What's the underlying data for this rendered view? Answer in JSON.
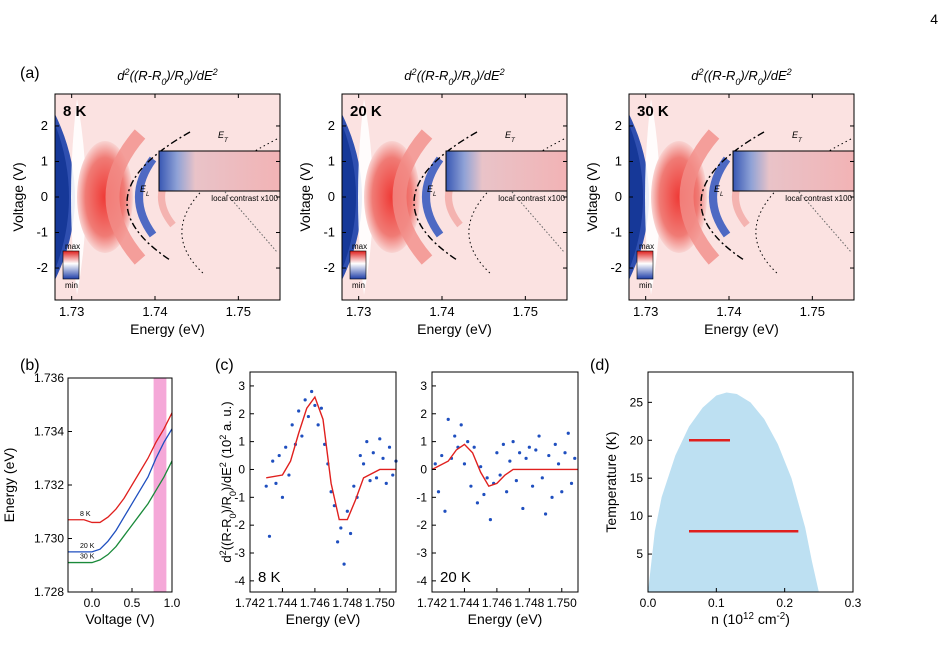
{
  "page_number": "4",
  "panel_a": {
    "panel_label": "(a)",
    "plot_title": "d2((R-R0)/R0)/dE2",
    "xlabel": "Energy (eV)",
    "ylabel": "Voltage (V)",
    "xticks": [
      "1.73",
      "1.74",
      "1.75"
    ],
    "yticks": [
      "2",
      "1",
      "0",
      "-1",
      "-2"
    ],
    "xlim": [
      1.728,
      1.755
    ],
    "ylim": [
      -2.9,
      2.9
    ],
    "colorbar": {
      "max": "max",
      "min": "min"
    },
    "inset_label": "local contrast x100",
    "line_labels": [
      "ET",
      "EL"
    ],
    "maps": [
      {
        "temperature": "8 K"
      },
      {
        "temperature": "20 K"
      },
      {
        "temperature": "30 K"
      }
    ]
  },
  "panel_b": {
    "panel_label": "(b)",
    "xlabel": "Voltage (V)",
    "ylabel": "Energy (eV)",
    "xticks": [
      "0.0",
      "0.5",
      "1.0"
    ],
    "yticks": [
      "1.736",
      "1.734",
      "1.732",
      "1.730",
      "1.728"
    ],
    "xlim": [
      -0.3,
      1.0
    ],
    "ylim": [
      1.728,
      1.736
    ],
    "highlight_range": [
      0.77,
      0.93
    ],
    "highlight_color": "#f5a8d8",
    "chart_data": {
      "type": "line",
      "series": [
        {
          "name": "8 K",
          "color": "#e0201e",
          "x": [
            -0.3,
            -0.1,
            0.0,
            0.1,
            0.2,
            0.3,
            0.4,
            0.5,
            0.6,
            0.7,
            0.8,
            0.9,
            1.0
          ],
          "y": [
            1.7307,
            1.7307,
            1.7306,
            1.7306,
            1.7308,
            1.7311,
            1.7315,
            1.732,
            1.7325,
            1.733,
            1.7336,
            1.7341,
            1.7347
          ]
        },
        {
          "name": "20 K",
          "color": "#1f4fbf",
          "x": [
            -0.3,
            -0.1,
            0.0,
            0.1,
            0.2,
            0.3,
            0.4,
            0.5,
            0.6,
            0.7,
            0.8,
            0.9,
            1.0
          ],
          "y": [
            1.7295,
            1.7295,
            1.7295,
            1.7296,
            1.7299,
            1.7303,
            1.7308,
            1.7313,
            1.7318,
            1.7323,
            1.733,
            1.7336,
            1.7341
          ]
        },
        {
          "name": "30 K",
          "color": "#1a8a3a",
          "x": [
            -0.3,
            -0.1,
            0.0,
            0.1,
            0.2,
            0.3,
            0.4,
            0.5,
            0.6,
            0.7,
            0.8,
            0.9,
            1.0
          ],
          "y": [
            1.7291,
            1.7291,
            1.7291,
            1.7292,
            1.7294,
            1.7297,
            1.7301,
            1.7305,
            1.7309,
            1.7313,
            1.7318,
            1.7323,
            1.7329
          ]
        }
      ]
    }
  },
  "panel_c": {
    "panel_label": "(c)",
    "ylabel": "d2((R-R0)/R0)/dE2 (102 a. u.)",
    "xlabel": "Energy (eV)",
    "xticks": [
      "1.742",
      "1.744",
      "1.746",
      "1.748",
      "1.750"
    ],
    "yticks": [
      "3",
      "2",
      "1",
      "0",
      "-1",
      "-2",
      "-3",
      "-4"
    ],
    "xlim": [
      1.742,
      1.751
    ],
    "ylim": [
      -4.4,
      3.5
    ],
    "chart_data": [
      {
        "type": "scatter",
        "label": "8 K",
        "fit_color": "#e0201e",
        "point_color": "#1f4fbf",
        "fit_x": [
          1.743,
          1.744,
          1.7445,
          1.745,
          1.7455,
          1.746,
          1.7465,
          1.747,
          1.7475,
          1.748,
          1.7485,
          1.749,
          1.75,
          1.751
        ],
        "fit_y": [
          -0.3,
          -0.2,
          0.3,
          1.3,
          2.2,
          2.6,
          1.8,
          -0.5,
          -1.8,
          -1.8,
          -1.1,
          -0.3,
          0.0,
          0.0
        ],
        "points_x": [
          1.743,
          1.7432,
          1.7434,
          1.7436,
          1.7438,
          1.744,
          1.7442,
          1.7444,
          1.7446,
          1.7448,
          1.745,
          1.7452,
          1.7454,
          1.7456,
          1.7458,
          1.746,
          1.7462,
          1.7464,
          1.7466,
          1.7468,
          1.747,
          1.7472,
          1.7474,
          1.7476,
          1.7478,
          1.748,
          1.7482,
          1.7484,
          1.7486,
          1.7488,
          1.749,
          1.7492,
          1.7494,
          1.7496,
          1.7498,
          1.75,
          1.7502,
          1.7504,
          1.7506,
          1.7508,
          1.751
        ],
        "points_y": [
          -0.6,
          -2.4,
          0.3,
          -0.5,
          0.5,
          -1.0,
          0.8,
          -0.2,
          1.6,
          0.9,
          2.1,
          1.2,
          2.5,
          1.9,
          2.8,
          2.3,
          1.6,
          2.2,
          0.9,
          0.2,
          -0.8,
          -1.3,
          -2.6,
          -2.1,
          -3.4,
          -1.5,
          -2.3,
          -0.6,
          -1.0,
          0.5,
          0.2,
          1.0,
          -0.4,
          0.6,
          -0.3,
          1.1,
          0.4,
          -0.5,
          0.8,
          -0.2,
          0.3
        ]
      },
      {
        "type": "scatter",
        "label": "20 K",
        "fit_color": "#e0201e",
        "point_color": "#1f4fbf",
        "fit_x": [
          1.742,
          1.743,
          1.7435,
          1.744,
          1.7445,
          1.745,
          1.7455,
          1.746,
          1.7465,
          1.747,
          1.748,
          1.749,
          1.75,
          1.751
        ],
        "fit_y": [
          0.0,
          0.3,
          0.7,
          0.9,
          0.6,
          -0.1,
          -0.6,
          -0.5,
          -0.2,
          0.0,
          0.0,
          0.0,
          0.0,
          0.0
        ],
        "points_x": [
          1.7422,
          1.7424,
          1.7426,
          1.7428,
          1.743,
          1.7432,
          1.7434,
          1.7436,
          1.7438,
          1.744,
          1.7442,
          1.7444,
          1.7446,
          1.7448,
          1.745,
          1.7452,
          1.7454,
          1.7456,
          1.7458,
          1.746,
          1.7462,
          1.7464,
          1.7466,
          1.7468,
          1.747,
          1.7472,
          1.7474,
          1.7476,
          1.7478,
          1.748,
          1.7482,
          1.7484,
          1.7486,
          1.7488,
          1.749,
          1.7492,
          1.7494,
          1.7496,
          1.7498,
          1.75,
          1.7502,
          1.7504,
          1.7506,
          1.7508
        ],
        "points_y": [
          0.2,
          -0.8,
          0.5,
          -1.5,
          1.8,
          0.4,
          1.2,
          0.8,
          1.6,
          0.2,
          1.0,
          -0.6,
          0.8,
          -1.2,
          0.1,
          -0.9,
          -0.3,
          -1.8,
          -0.5,
          0.6,
          -0.2,
          0.9,
          -0.8,
          0.3,
          1.0,
          -0.4,
          0.6,
          -1.4,
          0.4,
          0.8,
          -0.6,
          0.7,
          1.2,
          -0.3,
          -1.6,
          0.5,
          -1.0,
          0.9,
          0.2,
          -0.8,
          0.6,
          1.3,
          -0.5,
          0.4
        ]
      }
    ]
  },
  "panel_d": {
    "panel_label": "(d)",
    "xlabel": "n (1012 cm-2)",
    "ylabel": "Temperature (K)",
    "xticks": [
      "0.0",
      "0.1",
      "0.2",
      "0.3"
    ],
    "yticks": [
      "25",
      "20",
      "15",
      "10",
      "5"
    ],
    "xlim": [
      0.0,
      0.3
    ],
    "ylim": [
      0,
      29
    ],
    "dome_color": "#bde0f2",
    "chart_data": {
      "type": "area",
      "dome_x": [
        0.0,
        0.01,
        0.02,
        0.04,
        0.06,
        0.08,
        0.1,
        0.115,
        0.13,
        0.15,
        0.17,
        0.19,
        0.21,
        0.23,
        0.24,
        0.25
      ],
      "dome_y": [
        0,
        8,
        12.5,
        18,
        21.8,
        24.3,
        25.9,
        26.3,
        26.1,
        25.0,
        22.8,
        19.5,
        15.0,
        8.5,
        4.0,
        0
      ],
      "segments": [
        {
          "y": 20,
          "x": [
            0.06,
            0.12
          ],
          "color": "#e0201e"
        },
        {
          "y": 8,
          "x": [
            0.06,
            0.22
          ],
          "color": "#e0201e"
        }
      ]
    }
  }
}
